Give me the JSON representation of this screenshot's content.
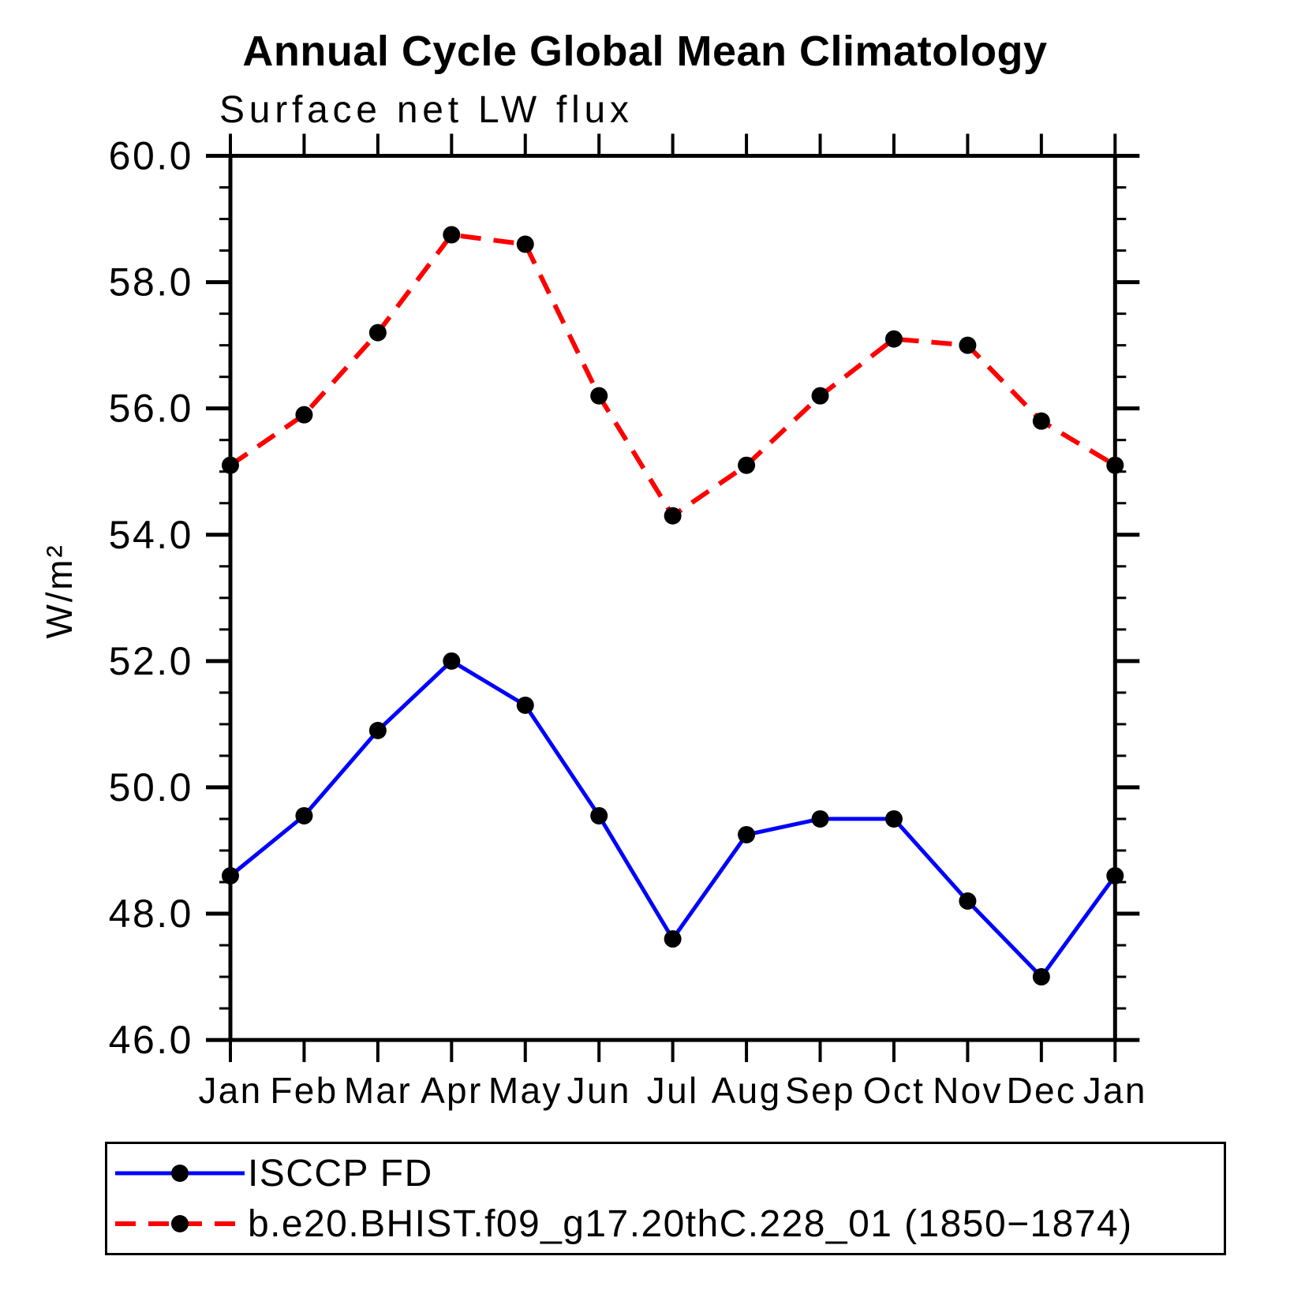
{
  "chart_data": {
    "type": "line",
    "title": "Annual Cycle Global Mean Climatology",
    "subtitle": "Surface net LW flux",
    "ylabel": "W/m²",
    "xlabel": "",
    "categories": [
      "Jan",
      "Feb",
      "Mar",
      "Apr",
      "May",
      "Jun",
      "Jul",
      "Aug",
      "Sep",
      "Oct",
      "Nov",
      "Dec",
      "Jan"
    ],
    "ylim": [
      46.0,
      60.0
    ],
    "y_major_ticks": [
      46.0,
      48.0,
      50.0,
      52.0,
      54.0,
      56.0,
      58.0,
      60.0
    ],
    "y_major_tick_labels": [
      "46.0",
      "48.0",
      "50.0",
      "52.0",
      "54.0",
      "56.0",
      "58.0",
      "60.0"
    ],
    "y_minor_tick_step": 0.5,
    "grid": false,
    "legend_position": "bottom-box",
    "axis_color": "#000000",
    "series": [
      {
        "name": "ISCCP FD",
        "color": "#0000ff",
        "line_style": "solid",
        "marker": "filled-circle",
        "marker_color": "#000000",
        "values": [
          48.6,
          49.55,
          50.9,
          52.0,
          51.3,
          49.55,
          47.6,
          49.25,
          49.5,
          49.5,
          48.2,
          47.0,
          48.6
        ]
      },
      {
        "name": "b.e20.BHIST.f09_g17.20thC.228_01 (1850−1874)",
        "color": "#ff0000",
        "line_style": "dashed",
        "marker": "filled-circle",
        "marker_color": "#000000",
        "values": [
          55.1,
          55.9,
          57.2,
          58.75,
          58.6,
          56.2,
          54.3,
          55.1,
          56.2,
          57.1,
          57.0,
          55.8,
          55.1
        ]
      }
    ]
  }
}
